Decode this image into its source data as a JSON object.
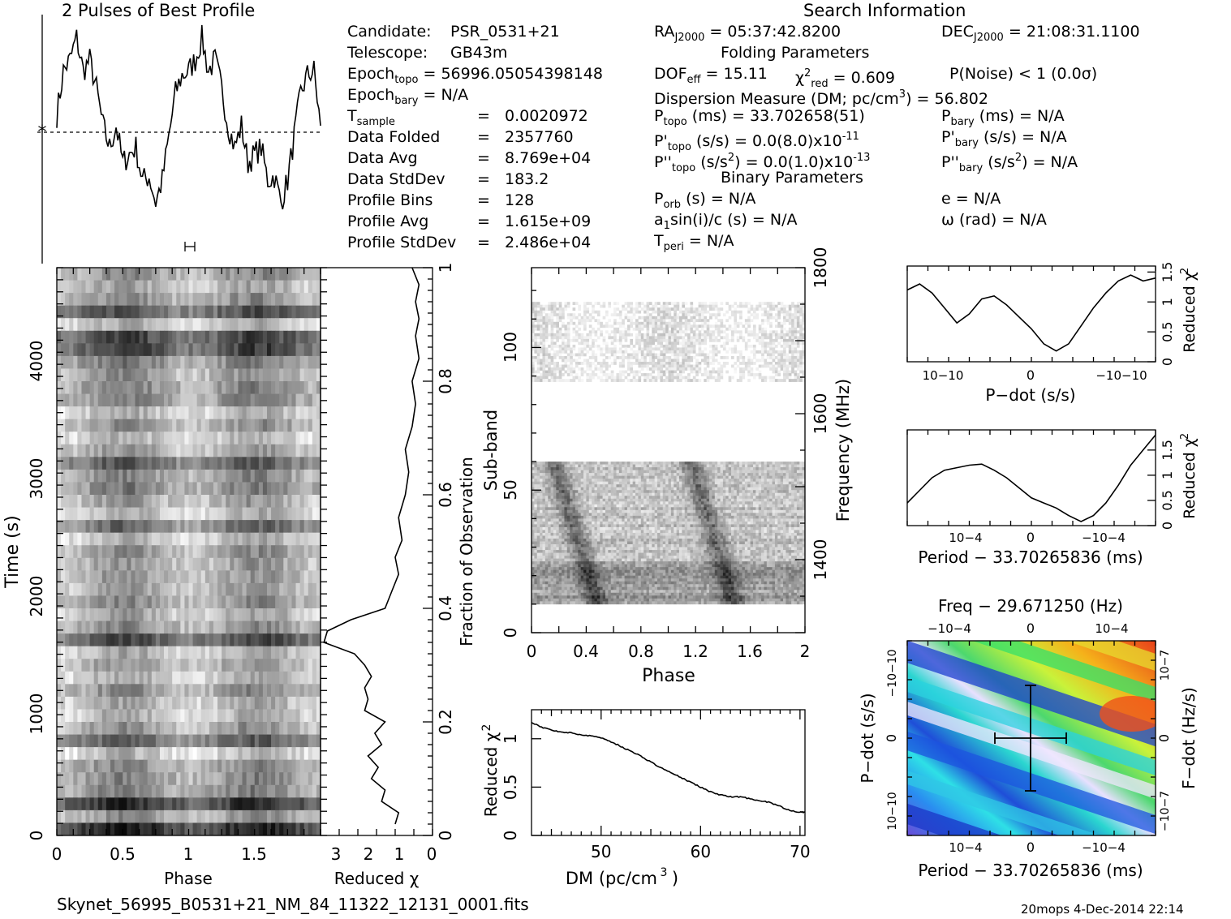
{
  "title": "2 Pulses of Best Profile",
  "search_info": {
    "heading": "Search Information",
    "candidate": {
      "label": "Candidate:",
      "value": "PSR_0531+21"
    },
    "telescope": {
      "label": "Telescope:",
      "value": "GB43m"
    },
    "epoch_topo": {
      "label": "Epoch",
      "sub": "topo",
      "value": "= 56996.05054398148"
    },
    "epoch_bary": {
      "label": "Epoch",
      "sub": "bary",
      "value": "= N/A"
    },
    "rows": [
      {
        "label": "T",
        "sub": "sample",
        "eq": "=",
        "value": "0.0020972"
      },
      {
        "label": "Data Folded",
        "eq": "=",
        "value": "2357760"
      },
      {
        "label": "Data Avg",
        "eq": "=",
        "value": "8.769e+04"
      },
      {
        "label": "Data StdDev",
        "eq": "=",
        "value": "183.2"
      },
      {
        "label": "Profile Bins",
        "eq": "=",
        "value": "128"
      },
      {
        "label": "Profile Avg",
        "eq": "=",
        "value": "1.615e+09"
      },
      {
        "label": "Profile StdDev",
        "eq": "=",
        "value": "2.486e+04"
      }
    ],
    "ra": {
      "label": "RA",
      "sub": "J2000",
      "value": "= 05:37:42.8200"
    },
    "dec": {
      "label": "DEC",
      "sub": "J2000",
      "value": "= 21:08:31.1100"
    },
    "folding_heading": "Folding Parameters",
    "dof": {
      "label": "DOF",
      "sub": "eff",
      "value": "= 15.11"
    },
    "chi2": {
      "label": "χ",
      "sup": "2",
      "sub": "red",
      "value": "= 0.609"
    },
    "pnoise": "P(Noise) < 1   (0.0σ)",
    "dm_line": {
      "text": "Dispersion Measure (DM; pc/cm",
      "sup": "3",
      "tail": ") = 56.802"
    },
    "ptopo": {
      "label": "P",
      "sub": "topo",
      "value": "(ms) =  33.702658(51)"
    },
    "pbary": {
      "label": "P",
      "sub": "bary",
      "value": "(ms) = N/A"
    },
    "pdtopo": {
      "label": "P'",
      "sub": "topo",
      "value": "(s/s) = 0.0(8.0)x10",
      "sup": "-11"
    },
    "pdbary": {
      "label": "P'",
      "sub": "bary",
      "value": "(s/s) = N/A"
    },
    "pddtopo": {
      "label": "P''",
      "sub": "topo",
      "value": "(s/s",
      "sup": "2",
      "tail": ") = 0.0(1.0)x10",
      "sup2": "-13"
    },
    "pddbary": {
      "label": "P''",
      "sub": "bary",
      "value": "(s/s",
      "sup": "2",
      "tail": ") = N/A"
    },
    "binary_heading": "Binary Parameters",
    "porb": {
      "label": "P",
      "sub": "orb",
      "value": "(s) = N/A"
    },
    "ecc": "e = N/A",
    "asini": {
      "label": "a",
      "sub": "1",
      "value": "sin(i)/c (s) = N/A"
    },
    "omega": "ω (rad) = N/A",
    "tperi": {
      "label": "T",
      "sub": "peri",
      "value": "= N/A"
    }
  },
  "footer": {
    "filename": "Skynet_56995_B0531+21_NM_84_11322_12131_0001.fits",
    "stamp": "20mops  4-Dec-2014 22:14"
  },
  "colors": {
    "line": "#000000",
    "grid_dark": "#000000",
    "grid_light": "#ffffff"
  },
  "chart_data": [
    {
      "type": "line",
      "title": "2 Pulses of Best Profile",
      "xlim": [
        0,
        2
      ],
      "description_y": "",
      "x": [
        0.0,
        0.05,
        0.1,
        0.15,
        0.2,
        0.25,
        0.3,
        0.35,
        0.4,
        0.45,
        0.5,
        0.55,
        0.6,
        0.65,
        0.7,
        0.75,
        0.8,
        0.85,
        0.9,
        0.95,
        1.0,
        1.05,
        1.1,
        1.15,
        1.2,
        1.25,
        1.3,
        1.35,
        1.4,
        1.45,
        1.5,
        1.55,
        1.6,
        1.65,
        1.7,
        1.75,
        1.8,
        1.85,
        1.9,
        1.95,
        2.0
      ],
      "y": [
        0.6,
        0.8,
        0.85,
        0.95,
        0.8,
        0.85,
        0.72,
        0.55,
        0.45,
        0.55,
        0.38,
        0.42,
        0.45,
        0.3,
        0.32,
        0.2,
        0.3,
        0.5,
        0.7,
        0.78,
        0.8,
        0.85,
        0.95,
        0.8,
        0.85,
        0.72,
        0.55,
        0.45,
        0.55,
        0.38,
        0.42,
        0.45,
        0.3,
        0.32,
        0.2,
        0.3,
        0.5,
        0.7,
        0.78,
        0.8,
        0.55
      ]
    },
    {
      "type": "heatmap",
      "name": "time-phase",
      "xlabel": "Phase",
      "ylabel": "Time (s)",
      "xlim": [
        0,
        2
      ],
      "ylim": [
        0,
        4700
      ],
      "xticks": [
        "0",
        "0.5",
        "1",
        "1.5"
      ],
      "yticks": [
        "0",
        "1000",
        "2000",
        "3000",
        "4000"
      ]
    },
    {
      "type": "line",
      "name": "time-chi2",
      "xlabel": "Reduced χ2",
      "ylabel": "Fraction of Observation",
      "xlim": [
        3.3,
        0
      ],
      "ylim": [
        0,
        1
      ],
      "xticks": [
        "3",
        "2",
        "1",
        "0"
      ],
      "yticks": [
        "0",
        "0.2",
        "0.4",
        "0.6",
        "0.8",
        "1"
      ],
      "x": [
        1.1,
        1.0,
        1.5,
        1.4,
        1.8,
        1.6,
        1.9,
        1.5,
        1.7,
        1.4,
        2.0,
        1.9,
        2.0,
        1.8,
        2.0,
        2.3,
        3.2,
        3.1,
        2.4,
        1.4,
        1.2,
        1.0,
        1.1,
        0.9,
        1.0,
        0.8,
        0.7,
        0.8,
        0.6,
        0.5,
        0.6,
        0.4,
        0.5,
        0.4,
        0.5,
        0.4,
        0.6
      ],
      "y": [
        0.02,
        0.04,
        0.06,
        0.08,
        0.1,
        0.12,
        0.14,
        0.16,
        0.18,
        0.2,
        0.22,
        0.24,
        0.26,
        0.28,
        0.3,
        0.32,
        0.34,
        0.36,
        0.38,
        0.4,
        0.43,
        0.46,
        0.49,
        0.52,
        0.56,
        0.6,
        0.64,
        0.68,
        0.72,
        0.76,
        0.8,
        0.84,
        0.88,
        0.91,
        0.94,
        0.97,
        1.0
      ]
    },
    {
      "type": "heatmap",
      "name": "freq-phase",
      "xlabel": "Phase",
      "ylabel": "Sub-band",
      "ylabel2": "Frequency (MHz)",
      "xlim": [
        0,
        2
      ],
      "ylim": [
        0,
        128
      ],
      "xticks": [
        "0",
        "0.4",
        "0.8",
        "1.2",
        "1.6",
        "2"
      ],
      "yticks": [
        "0",
        "50",
        "100"
      ],
      "y2ticks": [
        "1400",
        "1600",
        "1800"
      ]
    },
    {
      "type": "line",
      "name": "dm-curve",
      "xlabel": "DM (pc/cm3)",
      "ylabel": "Reduced χ2",
      "xlim": [
        43,
        70.5
      ],
      "ylim": [
        0,
        1.3
      ],
      "xticks": [
        "50",
        "60",
        "70"
      ],
      "yticks": [
        "0",
        "0.5",
        "1"
      ],
      "x": [
        43,
        44,
        45,
        46,
        47,
        48,
        49,
        50,
        51,
        52,
        53,
        54,
        55,
        56,
        57,
        58,
        59,
        60,
        61,
        62,
        63,
        64,
        65,
        66,
        67,
        68,
        69,
        70,
        70.5
      ],
      "y": [
        1.17,
        1.12,
        1.09,
        1.07,
        1.06,
        1.04,
        1.03,
        1.01,
        0.97,
        0.92,
        0.87,
        0.82,
        0.76,
        0.7,
        0.65,
        0.6,
        0.55,
        0.5,
        0.45,
        0.42,
        0.4,
        0.4,
        0.38,
        0.36,
        0.34,
        0.3,
        0.26,
        0.24,
        0.24
      ]
    },
    {
      "type": "line",
      "name": "pdot-curve",
      "xlabel": "P−dot (s/s)",
      "ylabel": "Reduced χ2",
      "xticks": [
        "10−10",
        "0",
        "−10−10"
      ],
      "yticks": [
        "0",
        "0.5",
        "1",
        "1.5"
      ],
      "ylim": [
        0,
        1.6
      ],
      "x": [
        0,
        0.05,
        0.1,
        0.15,
        0.2,
        0.25,
        0.3,
        0.35,
        0.4,
        0.45,
        0.5,
        0.55,
        0.6,
        0.65,
        0.7,
        0.75,
        0.8,
        0.85,
        0.9,
        0.95,
        1.0
      ],
      "y": [
        1.2,
        1.3,
        1.15,
        0.9,
        0.65,
        0.8,
        1.05,
        1.1,
        0.95,
        0.75,
        0.55,
        0.3,
        0.18,
        0.3,
        0.6,
        0.9,
        1.15,
        1.35,
        1.45,
        1.35,
        1.4
      ]
    },
    {
      "type": "line",
      "name": "period-curve",
      "xlabel": "Period − 33.70265836 (ms)",
      "ylabel": "Reduced χ2",
      "xticks": [
        "10−4",
        "0",
        "−10−4"
      ],
      "yticks": [
        "0",
        "0.5",
        "1",
        "1.5"
      ],
      "ylim": [
        0,
        1.9
      ],
      "x": [
        0,
        0.05,
        0.1,
        0.15,
        0.2,
        0.25,
        0.3,
        0.35,
        0.4,
        0.45,
        0.5,
        0.55,
        0.6,
        0.65,
        0.7,
        0.75,
        0.8,
        0.85,
        0.9,
        0.95,
        1.0
      ],
      "y": [
        0.45,
        0.7,
        0.95,
        1.1,
        1.15,
        1.2,
        1.22,
        1.1,
        0.95,
        0.75,
        0.55,
        0.45,
        0.35,
        0.2,
        0.08,
        0.2,
        0.45,
        0.8,
        1.2,
        1.5,
        1.8
      ]
    },
    {
      "type": "heatmap",
      "name": "p-pdot",
      "title": "Freq − 29.671250 (Hz)",
      "xlabel": "Period − 33.70265836 (ms)",
      "ylabel": "P−dot (s/s)",
      "ylabel2": "F−dot (Hz/s)",
      "xticks": [
        "10−4",
        "0",
        "−10−4"
      ],
      "x2ticks": [
        "−10−4",
        "0",
        "10−4"
      ],
      "yticks": [
        "10−10",
        "0",
        "−10−10"
      ],
      "y2ticks": [
        "−10−7",
        "0",
        "10−7"
      ]
    }
  ]
}
